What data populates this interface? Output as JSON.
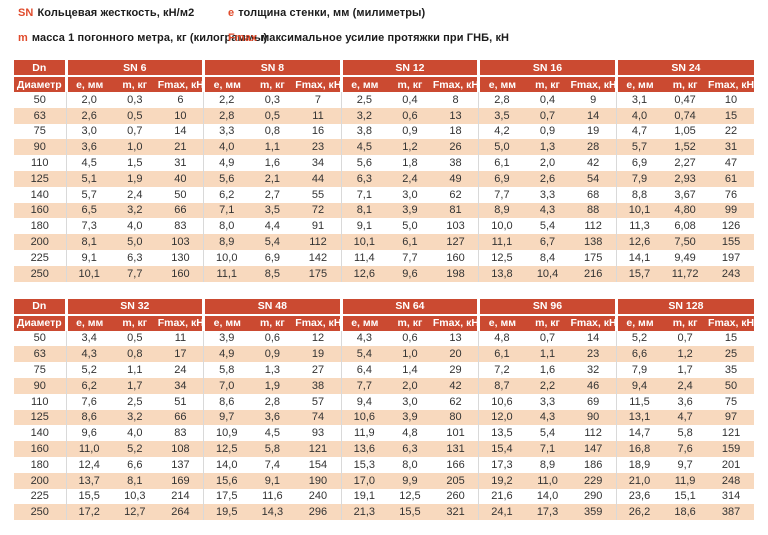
{
  "colors": {
    "header_bg": "#cb4a31",
    "row_alt_bg": "#f8d9be",
    "accent_text": "#e04b2c"
  },
  "legend": {
    "items": [
      {
        "symbol": "SN",
        "text": "Кольцевая жесткость,  кН/м2"
      },
      {
        "symbol": "e",
        "text": "толщина стенки, мм (милиметры)"
      },
      {
        "symbol": "m",
        "text": "масса 1 погонного метра, кг (килограммы)"
      },
      {
        "symbol": "Fmax",
        "text": "максимальное усилие протяжки при ГНБ, кН"
      }
    ]
  },
  "tables": [
    {
      "dn_header_line1": "Dn",
      "dn_header_line2": "Диаметр",
      "groups": [
        "SN 6",
        "SN 8",
        "SN 12",
        "SN 16",
        "SN 24"
      ],
      "sub_headers": [
        "e, мм",
        "m, кг",
        "Fmax, кН"
      ],
      "rows": [
        {
          "dn": "50",
          "cells": [
            "2,0",
            "0,3",
            "6",
            "2,2",
            "0,3",
            "7",
            "2,5",
            "0,4",
            "8",
            "2,8",
            "0,4",
            "9",
            "3,1",
            "0,47",
            "10"
          ]
        },
        {
          "dn": "63",
          "cells": [
            "2,6",
            "0,5",
            "10",
            "2,8",
            "0,5",
            "11",
            "3,2",
            "0,6",
            "13",
            "3,5",
            "0,7",
            "14",
            "4,0",
            "0,74",
            "15"
          ]
        },
        {
          "dn": "75",
          "cells": [
            "3,0",
            "0,7",
            "14",
            "3,3",
            "0,8",
            "16",
            "3,8",
            "0,9",
            "18",
            "4,2",
            "0,9",
            "19",
            "4,7",
            "1,05",
            "22"
          ]
        },
        {
          "dn": "90",
          "cells": [
            "3,6",
            "1,0",
            "21",
            "4,0",
            "1,1",
            "23",
            "4,5",
            "1,2",
            "26",
            "5,0",
            "1,3",
            "28",
            "5,7",
            "1,52",
            "31"
          ]
        },
        {
          "dn": "110",
          "cells": [
            "4,5",
            "1,5",
            "31",
            "4,9",
            "1,6",
            "34",
            "5,6",
            "1,8",
            "38",
            "6,1",
            "2,0",
            "42",
            "6,9",
            "2,27",
            "47"
          ]
        },
        {
          "dn": "125",
          "cells": [
            "5,1",
            "1,9",
            "40",
            "5,6",
            "2,1",
            "44",
            "6,3",
            "2,4",
            "49",
            "6,9",
            "2,6",
            "54",
            "7,9",
            "2,93",
            "61"
          ]
        },
        {
          "dn": "140",
          "cells": [
            "5,7",
            "2,4",
            "50",
            "6,2",
            "2,7",
            "55",
            "7,1",
            "3,0",
            "62",
            "7,7",
            "3,3",
            "68",
            "8,8",
            "3,67",
            "76"
          ]
        },
        {
          "dn": "160",
          "cells": [
            "6,5",
            "3,2",
            "66",
            "7,1",
            "3,5",
            "72",
            "8,1",
            "3,9",
            "81",
            "8,9",
            "4,3",
            "88",
            "10,1",
            "4,80",
            "99"
          ]
        },
        {
          "dn": "180",
          "cells": [
            "7,3",
            "4,0",
            "83",
            "8,0",
            "4,4",
            "91",
            "9,1",
            "5,0",
            "103",
            "10,0",
            "5,4",
            "112",
            "11,3",
            "6,08",
            "126"
          ]
        },
        {
          "dn": "200",
          "cells": [
            "8,1",
            "5,0",
            "103",
            "8,9",
            "5,4",
            "112",
            "10,1",
            "6,1",
            "127",
            "11,1",
            "6,7",
            "138",
            "12,6",
            "7,50",
            "155"
          ]
        },
        {
          "dn": "225",
          "cells": [
            "9,1",
            "6,3",
            "130",
            "10,0",
            "6,9",
            "142",
            "11,4",
            "7,7",
            "160",
            "12,5",
            "8,4",
            "175",
            "14,1",
            "9,49",
            "197"
          ]
        },
        {
          "dn": "250",
          "cells": [
            "10,1",
            "7,7",
            "160",
            "11,1",
            "8,5",
            "175",
            "12,6",
            "9,6",
            "198",
            "13,8",
            "10,4",
            "216",
            "15,7",
            "11,72",
            "243"
          ]
        }
      ]
    },
    {
      "dn_header_line1": "Dn",
      "dn_header_line2": "Диаметр",
      "groups": [
        "SN 32",
        "SN 48",
        "SN 64",
        "SN 96",
        "SN 128"
      ],
      "sub_headers": [
        "e, мм",
        "m, кг",
        "Fmax, кН"
      ],
      "rows": [
        {
          "dn": "50",
          "cells": [
            "3,4",
            "0,5",
            "11",
            "3,9",
            "0,6",
            "12",
            "4,3",
            "0,6",
            "13",
            "4,8",
            "0,7",
            "14",
            "5,2",
            "0,7",
            "15"
          ]
        },
        {
          "dn": "63",
          "cells": [
            "4,3",
            "0,8",
            "17",
            "4,9",
            "0,9",
            "19",
            "5,4",
            "1,0",
            "20",
            "6,1",
            "1,1",
            "23",
            "6,6",
            "1,2",
            "25"
          ]
        },
        {
          "dn": "75",
          "cells": [
            "5,2",
            "1,1",
            "24",
            "5,8",
            "1,3",
            "27",
            "6,4",
            "1,4",
            "29",
            "7,2",
            "1,6",
            "32",
            "7,9",
            "1,7",
            "35"
          ]
        },
        {
          "dn": "90",
          "cells": [
            "6,2",
            "1,7",
            "34",
            "7,0",
            "1,9",
            "38",
            "7,7",
            "2,0",
            "42",
            "8,7",
            "2,2",
            "46",
            "9,4",
            "2,4",
            "50"
          ]
        },
        {
          "dn": "110",
          "cells": [
            "7,6",
            "2,5",
            "51",
            "8,6",
            "2,8",
            "57",
            "9,4",
            "3,0",
            "62",
            "10,6",
            "3,3",
            "69",
            "11,5",
            "3,6",
            "75"
          ]
        },
        {
          "dn": "125",
          "cells": [
            "8,6",
            "3,2",
            "66",
            "9,7",
            "3,6",
            "74",
            "10,6",
            "3,9",
            "80",
            "12,0",
            "4,3",
            "90",
            "13,1",
            "4,7",
            "97"
          ]
        },
        {
          "dn": "140",
          "cells": [
            "9,6",
            "4,0",
            "83",
            "10,9",
            "4,5",
            "93",
            "11,9",
            "4,8",
            "101",
            "13,5",
            "5,4",
            "112",
            "14,7",
            "5,8",
            "121"
          ]
        },
        {
          "dn": "160",
          "cells": [
            "11,0",
            "5,2",
            "108",
            "12,5",
            "5,8",
            "121",
            "13,6",
            "6,3",
            "131",
            "15,4",
            "7,1",
            "147",
            "16,8",
            "7,6",
            "159"
          ]
        },
        {
          "dn": "180",
          "cells": [
            "12,4",
            "6,6",
            "137",
            "14,0",
            "7,4",
            "154",
            "15,3",
            "8,0",
            "166",
            "17,3",
            "8,9",
            "186",
            "18,9",
            "9,7",
            "201"
          ]
        },
        {
          "dn": "200",
          "cells": [
            "13,7",
            "8,1",
            "169",
            "15,6",
            "9,1",
            "190",
            "17,0",
            "9,9",
            "205",
            "19,2",
            "11,0",
            "229",
            "21,0",
            "11,9",
            "248"
          ]
        },
        {
          "dn": "225",
          "cells": [
            "15,5",
            "10,3",
            "214",
            "17,5",
            "11,6",
            "240",
            "19,1",
            "12,5",
            "260",
            "21,6",
            "14,0",
            "290",
            "23,6",
            "15,1",
            "314"
          ]
        },
        {
          "dn": "250",
          "cells": [
            "17,2",
            "12,7",
            "264",
            "19,5",
            "14,3",
            "296",
            "21,3",
            "15,5",
            "321",
            "24,1",
            "17,3",
            "359",
            "26,2",
            "18,6",
            "387"
          ]
        }
      ]
    }
  ]
}
